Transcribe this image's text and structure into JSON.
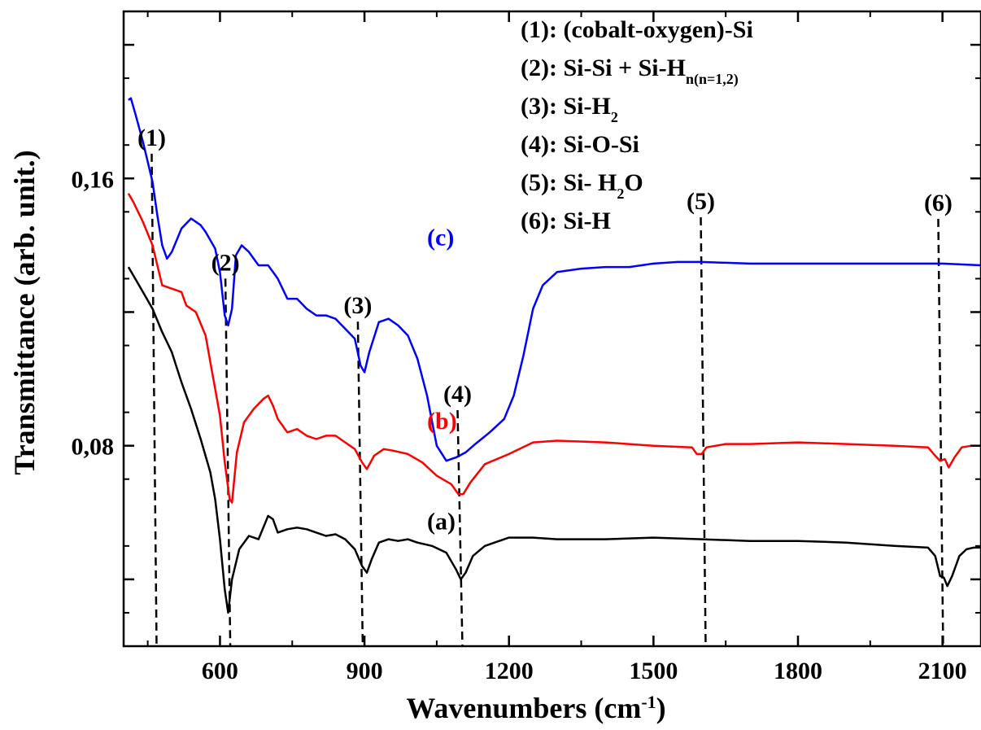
{
  "chart_data": {
    "type": "line",
    "title": "",
    "xlabel": "Wavenumbers (cm",
    "xlabel_sup": "-1",
    "xlabel_end": ")",
    "ylabel": "Transmittance (arb. unit.)",
    "xlim": [
      400,
      2180
    ],
    "ylim": [
      0.02,
      0.21
    ],
    "x_ticks": [
      600,
      900,
      1200,
      1500,
      1800,
      2100
    ],
    "x_tick_labels": [
      "600",
      "900",
      "1200",
      "1500",
      "1800",
      "2100"
    ],
    "x_minor_ticks": [
      450,
      750,
      1050,
      1350,
      1650,
      1950
    ],
    "y_ticks": [
      0.04,
      0.08,
      0.12,
      0.16,
      0.2
    ],
    "y_tick_labels": [
      {
        "value": 0.16,
        "label": "0,16"
      },
      {
        "value": 0.08,
        "label": "0,08"
      }
    ],
    "grid": false,
    "series": [
      {
        "name": "(a)",
        "color": "#000000",
        "label_at": [
          1030,
          0.055
        ],
        "points": [
          [
            410,
            0.1335
          ],
          [
            420,
            0.131
          ],
          [
            440,
            0.126
          ],
          [
            460,
            0.121
          ],
          [
            480,
            0.114
          ],
          [
            500,
            0.108
          ],
          [
            520,
            0.099
          ],
          [
            540,
            0.091
          ],
          [
            560,
            0.082
          ],
          [
            580,
            0.072
          ],
          [
            590,
            0.064
          ],
          [
            600,
            0.052
          ],
          [
            610,
            0.037
          ],
          [
            617,
            0.03
          ],
          [
            625,
            0.04
          ],
          [
            640,
            0.049
          ],
          [
            660,
            0.053
          ],
          [
            680,
            0.052
          ],
          [
            700,
            0.059
          ],
          [
            710,
            0.058
          ],
          [
            720,
            0.054
          ],
          [
            740,
            0.055
          ],
          [
            760,
            0.0555
          ],
          [
            780,
            0.055
          ],
          [
            800,
            0.054
          ],
          [
            820,
            0.053
          ],
          [
            840,
            0.0535
          ],
          [
            860,
            0.052
          ],
          [
            880,
            0.049
          ],
          [
            895,
            0.044
          ],
          [
            905,
            0.042
          ],
          [
            915,
            0.046
          ],
          [
            930,
            0.051
          ],
          [
            950,
            0.052
          ],
          [
            970,
            0.0515
          ],
          [
            990,
            0.052
          ],
          [
            1010,
            0.051
          ],
          [
            1040,
            0.05
          ],
          [
            1070,
            0.048
          ],
          [
            1090,
            0.043
          ],
          [
            1100,
            0.04
          ],
          [
            1110,
            0.042
          ],
          [
            1125,
            0.047
          ],
          [
            1150,
            0.05
          ],
          [
            1200,
            0.0525
          ],
          [
            1250,
            0.0525
          ],
          [
            1300,
            0.052
          ],
          [
            1400,
            0.052
          ],
          [
            1500,
            0.0525
          ],
          [
            1600,
            0.052
          ],
          [
            1700,
            0.0515
          ],
          [
            1800,
            0.0515
          ],
          [
            1900,
            0.051
          ],
          [
            2000,
            0.05
          ],
          [
            2070,
            0.0495
          ],
          [
            2085,
            0.047
          ],
          [
            2095,
            0.041
          ],
          [
            2103,
            0.0405
          ],
          [
            2110,
            0.038
          ],
          [
            2120,
            0.041
          ],
          [
            2135,
            0.047
          ],
          [
            2150,
            0.049
          ],
          [
            2165,
            0.0495
          ],
          [
            2180,
            0.0495
          ]
        ]
      },
      {
        "name": "(b)",
        "color": "#ff0000",
        "label_at": [
          1030,
          0.085
        ],
        "points": [
          [
            410,
            0.1555
          ],
          [
            420,
            0.153
          ],
          [
            440,
            0.147
          ],
          [
            460,
            0.14
          ],
          [
            470,
            0.134
          ],
          [
            480,
            0.128
          ],
          [
            500,
            0.127
          ],
          [
            520,
            0.126
          ],
          [
            530,
            0.122
          ],
          [
            550,
            0.12
          ],
          [
            570,
            0.113
          ],
          [
            580,
            0.105
          ],
          [
            590,
            0.097
          ],
          [
            600,
            0.089
          ],
          [
            610,
            0.075
          ],
          [
            620,
            0.064
          ],
          [
            625,
            0.063
          ],
          [
            635,
            0.078
          ],
          [
            650,
            0.087
          ],
          [
            670,
            0.091
          ],
          [
            690,
            0.094
          ],
          [
            700,
            0.095
          ],
          [
            710,
            0.092
          ],
          [
            720,
            0.088
          ],
          [
            740,
            0.084
          ],
          [
            760,
            0.085
          ],
          [
            780,
            0.083
          ],
          [
            800,
            0.082
          ],
          [
            820,
            0.083
          ],
          [
            840,
            0.083
          ],
          [
            860,
            0.081
          ],
          [
            880,
            0.079
          ],
          [
            895,
            0.075
          ],
          [
            905,
            0.073
          ],
          [
            920,
            0.077
          ],
          [
            940,
            0.079
          ],
          [
            960,
            0.0785
          ],
          [
            990,
            0.0775
          ],
          [
            1020,
            0.075
          ],
          [
            1050,
            0.071
          ],
          [
            1080,
            0.0685
          ],
          [
            1095,
            0.0655
          ],
          [
            1105,
            0.0655
          ],
          [
            1120,
            0.069
          ],
          [
            1150,
            0.0745
          ],
          [
            1200,
            0.0775
          ],
          [
            1250,
            0.081
          ],
          [
            1300,
            0.0815
          ],
          [
            1400,
            0.081
          ],
          [
            1500,
            0.08
          ],
          [
            1580,
            0.0795
          ],
          [
            1590,
            0.0775
          ],
          [
            1600,
            0.0775
          ],
          [
            1610,
            0.0795
          ],
          [
            1650,
            0.0805
          ],
          [
            1700,
            0.0805
          ],
          [
            1800,
            0.081
          ],
          [
            1900,
            0.0805
          ],
          [
            2000,
            0.08
          ],
          [
            2070,
            0.0795
          ],
          [
            2085,
            0.077
          ],
          [
            2095,
            0.0755
          ],
          [
            2105,
            0.076
          ],
          [
            2113,
            0.0735
          ],
          [
            2125,
            0.0765
          ],
          [
            2140,
            0.0795
          ],
          [
            2160,
            0.08
          ],
          [
            2180,
            0.08
          ]
        ]
      },
      {
        "name": "(c)",
        "color": "#0000ff",
        "label_at": [
          1030,
          0.14
        ],
        "points": [
          [
            410,
            0.1835
          ],
          [
            415,
            0.184
          ],
          [
            425,
            0.179
          ],
          [
            440,
            0.171
          ],
          [
            460,
            0.159
          ],
          [
            470,
            0.149
          ],
          [
            480,
            0.14
          ],
          [
            490,
            0.136
          ],
          [
            500,
            0.138
          ],
          [
            520,
            0.145
          ],
          [
            540,
            0.148
          ],
          [
            560,
            0.146
          ],
          [
            570,
            0.144
          ],
          [
            590,
            0.139
          ],
          [
            600,
            0.132
          ],
          [
            610,
            0.119
          ],
          [
            617,
            0.116
          ],
          [
            625,
            0.121
          ],
          [
            633,
            0.137
          ],
          [
            645,
            0.14
          ],
          [
            660,
            0.138
          ],
          [
            680,
            0.134
          ],
          [
            700,
            0.134
          ],
          [
            720,
            0.13
          ],
          [
            740,
            0.124
          ],
          [
            760,
            0.124
          ],
          [
            780,
            0.121
          ],
          [
            800,
            0.119
          ],
          [
            820,
            0.119
          ],
          [
            840,
            0.118
          ],
          [
            860,
            0.115
          ],
          [
            880,
            0.112
          ],
          [
            892,
            0.104
          ],
          [
            900,
            0.102
          ],
          [
            910,
            0.108
          ],
          [
            930,
            0.117
          ],
          [
            950,
            0.118
          ],
          [
            970,
            0.116
          ],
          [
            990,
            0.113
          ],
          [
            1010,
            0.106
          ],
          [
            1030,
            0.095
          ],
          [
            1050,
            0.08
          ],
          [
            1070,
            0.0755
          ],
          [
            1090,
            0.0765
          ],
          [
            1110,
            0.078
          ],
          [
            1130,
            0.0805
          ],
          [
            1160,
            0.084
          ],
          [
            1190,
            0.088
          ],
          [
            1210,
            0.095
          ],
          [
            1230,
            0.107
          ],
          [
            1250,
            0.121
          ],
          [
            1270,
            0.128
          ],
          [
            1300,
            0.132
          ],
          [
            1350,
            0.133
          ],
          [
            1400,
            0.1335
          ],
          [
            1450,
            0.1335
          ],
          [
            1500,
            0.1345
          ],
          [
            1550,
            0.135
          ],
          [
            1600,
            0.135
          ],
          [
            1700,
            0.1345
          ],
          [
            1800,
            0.1345
          ],
          [
            1900,
            0.1345
          ],
          [
            2000,
            0.1345
          ],
          [
            2100,
            0.1345
          ],
          [
            2180,
            0.134
          ]
        ]
      }
    ],
    "annotations": {
      "markers": [
        {
          "label": "(1)",
          "x": 465
        },
        {
          "label": "(2)",
          "x": 618
        },
        {
          "label": "(3)",
          "x": 893
        },
        {
          "label": "(4)",
          "x": 1100
        },
        {
          "label": "(5)",
          "x": 1605
        },
        {
          "label": "(6)",
          "x": 2098
        }
      ],
      "legend_position": "top-right",
      "legend": [
        {
          "num": "(1):",
          "text": "(cobalt-oxygen)-Si"
        },
        {
          "num": "(2):",
          "text": "Si-Si + Si-H",
          "sub": "n(n=1,2)"
        },
        {
          "num": "(3):",
          "text": "Si-H",
          "sub": "2"
        },
        {
          "num": "(4):",
          "text": "Si-O-Si"
        },
        {
          "num": "(5):",
          "text": "Si- H",
          "sub": "2",
          "after": "O"
        },
        {
          "num": "(6):",
          "text": "Si-H"
        }
      ]
    }
  }
}
